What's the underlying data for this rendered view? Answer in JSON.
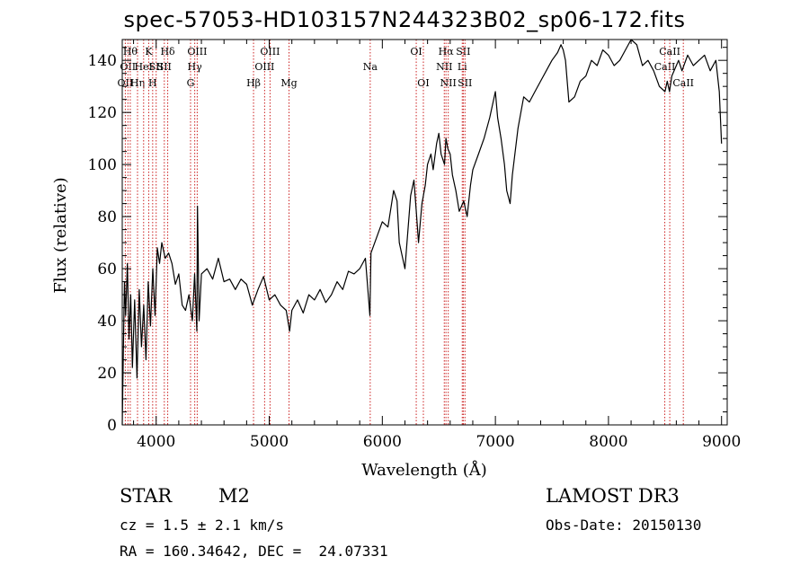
{
  "header": {
    "title": "spec-57053-HD103157N244323B02_sp06-172.fits"
  },
  "info": {
    "object_class": "STAR",
    "subclass": "M2",
    "survey": "LAMOST DR3",
    "cz": "cz = 1.5 ± 2.1 km/s",
    "obs_date": "Obs-Date: 20150130",
    "coords": "RA = 160.34642, DEC =  24.07331"
  },
  "chart_data": {
    "type": "line",
    "title": "spec-57053-HD103157N244323B02_sp06-172.fits",
    "xlabel": "Wavelength (Å)",
    "ylabel": "Flux (relative)",
    "xlim": [
      3700,
      9050
    ],
    "ylim": [
      0,
      148
    ],
    "xticks": [
      4000,
      5000,
      6000,
      7000,
      8000,
      9000
    ],
    "yticks": [
      0,
      20,
      40,
      60,
      80,
      100,
      120,
      140
    ],
    "line_color": "#000000",
    "marker_color": "#cc2222",
    "series": [
      {
        "x": [
          3700,
          3710,
          3720,
          3730,
          3745,
          3760,
          3775,
          3790,
          3810,
          3830,
          3850,
          3870,
          3890,
          3910,
          3930,
          3950,
          3970,
          3990,
          4010,
          4030,
          4050,
          4080,
          4110,
          4140,
          4170,
          4200,
          4230,
          4260,
          4290,
          4320,
          4340,
          4360,
          4365,
          4380,
          4400,
          4450,
          4500,
          4550,
          4600,
          4650,
          4700,
          4750,
          4800,
          4850,
          4900,
          4950,
          5000,
          5050,
          5100,
          5150,
          5180,
          5200,
          5250,
          5300,
          5350,
          5400,
          5450,
          5500,
          5550,
          5600,
          5650,
          5700,
          5750,
          5800,
          5850,
          5890,
          5900,
          5950,
          6000,
          6050,
          6100,
          6130,
          6150,
          6200,
          6250,
          6280,
          6300,
          6320,
          6350,
          6380,
          6400,
          6430,
          6450,
          6480,
          6500,
          6520,
          6550,
          6563,
          6580,
          6600,
          6620,
          6650,
          6680,
          6700,
          6720,
          6750,
          6780,
          6800,
          6850,
          6900,
          6950,
          7000,
          7020,
          7050,
          7080,
          7100,
          7130,
          7150,
          7200,
          7250,
          7300,
          7350,
          7400,
          7450,
          7500,
          7550,
          7580,
          7600,
          7620,
          7650,
          7700,
          7750,
          7800,
          7850,
          7900,
          7950,
          8000,
          8050,
          8100,
          8150,
          8200,
          8250,
          8300,
          8350,
          8400,
          8450,
          8500,
          8520,
          8540,
          8560,
          8600,
          8620,
          8650,
          8700,
          8750,
          8800,
          8850,
          8900,
          8950,
          8980,
          9000
        ],
        "y": [
          0,
          30,
          55,
          42,
          62,
          33,
          50,
          22,
          48,
          18,
          52,
          30,
          46,
          25,
          55,
          38,
          60,
          42,
          68,
          62,
          70,
          64,
          66,
          62,
          54,
          58,
          46,
          44,
          50,
          40,
          58,
          36,
          84,
          40,
          58,
          60,
          56,
          64,
          55,
          56,
          52,
          56,
          54,
          46,
          52,
          57,
          48,
          50,
          46,
          44,
          36,
          44,
          48,
          43,
          50,
          48,
          52,
          47,
          50,
          55,
          52,
          59,
          58,
          60,
          64,
          42,
          66,
          72,
          78,
          76,
          90,
          86,
          70,
          60,
          88,
          94,
          82,
          70,
          85,
          92,
          100,
          104,
          98,
          108,
          112,
          104,
          100,
          110,
          106,
          104,
          96,
          90,
          82,
          84,
          86,
          80,
          92,
          98,
          104,
          110,
          118,
          128,
          118,
          110,
          100,
          90,
          85,
          96,
          114,
          126,
          124,
          128,
          132,
          136,
          140,
          143,
          146,
          144,
          140,
          124,
          126,
          132,
          134,
          140,
          138,
          144,
          142,
          138,
          140,
          144,
          148,
          146,
          138,
          140,
          136,
          130,
          128,
          132,
          128,
          134,
          138,
          140,
          136,
          142,
          138,
          140,
          142,
          136,
          140,
          128,
          108
        ]
      }
    ],
    "line_markers": [
      {
        "wl": 3727,
        "label": "OII",
        "row": 3
      },
      {
        "wl": 3750,
        "label": "OII",
        "row": 2
      },
      {
        "wl": 3771,
        "label": "Hθ",
        "row": 1
      },
      {
        "wl": 3835,
        "label": "Hη",
        "row": 3
      },
      {
        "wl": 3889,
        "label": "HeI",
        "row": 2
      },
      {
        "wl": 3934,
        "label": "K",
        "row": 1
      },
      {
        "wl": 3969,
        "label": "H",
        "row": 3
      },
      {
        "wl": 4000,
        "label": "SII",
        "row": 2
      },
      {
        "wl": 4072,
        "label": "SII",
        "row": 2
      },
      {
        "wl": 4102,
        "label": "Hδ",
        "row": 1
      },
      {
        "wl": 4304,
        "label": "G",
        "row": 3
      },
      {
        "wl": 4341,
        "label": "Hγ",
        "row": 2
      },
      {
        "wl": 4363,
        "label": "OIII",
        "row": 1
      },
      {
        "wl": 4861,
        "label": "Hβ",
        "row": 3
      },
      {
        "wl": 4959,
        "label": "OIII",
        "row": 2
      },
      {
        "wl": 5007,
        "label": "OIII",
        "row": 1
      },
      {
        "wl": 5175,
        "label": "Mg",
        "row": 3
      },
      {
        "wl": 5893,
        "label": "Na",
        "row": 2
      },
      {
        "wl": 6300,
        "label": "OI",
        "row": 1
      },
      {
        "wl": 6363,
        "label": "OI",
        "row": 3
      },
      {
        "wl": 6548,
        "label": "NII",
        "row": 2
      },
      {
        "wl": 6563,
        "label": "Hα",
        "row": 1
      },
      {
        "wl": 6583,
        "label": "NII",
        "row": 3
      },
      {
        "wl": 6707,
        "label": "Li",
        "row": 2
      },
      {
        "wl": 6716,
        "label": "SII",
        "row": 1
      },
      {
        "wl": 6731,
        "label": "SII",
        "row": 3
      },
      {
        "wl": 8498,
        "label": "CaII",
        "row": 2
      },
      {
        "wl": 8542,
        "label": "CaII",
        "row": 1
      },
      {
        "wl": 8662,
        "label": "CaII",
        "row": 3
      }
    ]
  }
}
